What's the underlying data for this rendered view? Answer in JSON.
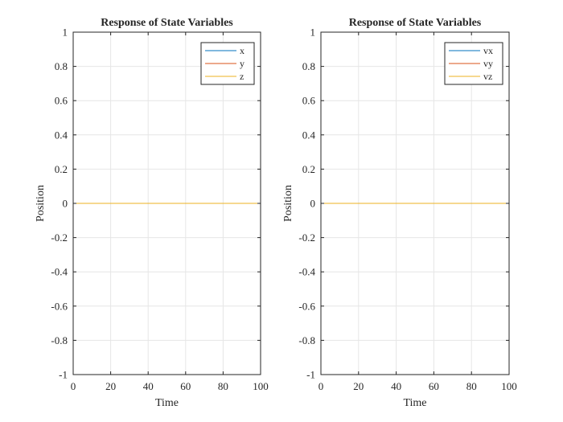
{
  "chart_data": [
    {
      "type": "line",
      "title": "Response of State Variables",
      "xlabel": "Time",
      "ylabel": "Position",
      "xlim": [
        0,
        100
      ],
      "ylim": [
        -1,
        1
      ],
      "xticks": [
        0,
        20,
        40,
        60,
        80,
        100
      ],
      "yticks": [
        -1,
        -0.8,
        -0.6,
        -0.4,
        -0.2,
        0,
        0.2,
        0.4,
        0.6,
        0.8,
        1
      ],
      "grid": true,
      "legend_position": "top-right",
      "x": [
        0,
        100
      ],
      "series": [
        {
          "name": "x",
          "values": [
            0,
            0
          ],
          "color": "#0072BD"
        },
        {
          "name": "y",
          "values": [
            0,
            0
          ],
          "color": "#D95319"
        },
        {
          "name": "z",
          "values": [
            0,
            0
          ],
          "color": "#EDB120"
        }
      ]
    },
    {
      "type": "line",
      "title": "Response of State Variables",
      "xlabel": "Time",
      "ylabel": "Position",
      "xlim": [
        0,
        100
      ],
      "ylim": [
        -1,
        1
      ],
      "xticks": [
        0,
        20,
        40,
        60,
        80,
        100
      ],
      "yticks": [
        -1,
        -0.8,
        -0.6,
        -0.4,
        -0.2,
        0,
        0.2,
        0.4,
        0.6,
        0.8,
        1
      ],
      "grid": true,
      "legend_position": "top-right",
      "x": [
        0,
        100
      ],
      "series": [
        {
          "name": "vx",
          "values": [
            0,
            0
          ],
          "color": "#0072BD"
        },
        {
          "name": "vy",
          "values": [
            0,
            0
          ],
          "color": "#D95319"
        },
        {
          "name": "vz",
          "values": [
            0,
            0
          ],
          "color": "#EDB120"
        }
      ]
    }
  ]
}
